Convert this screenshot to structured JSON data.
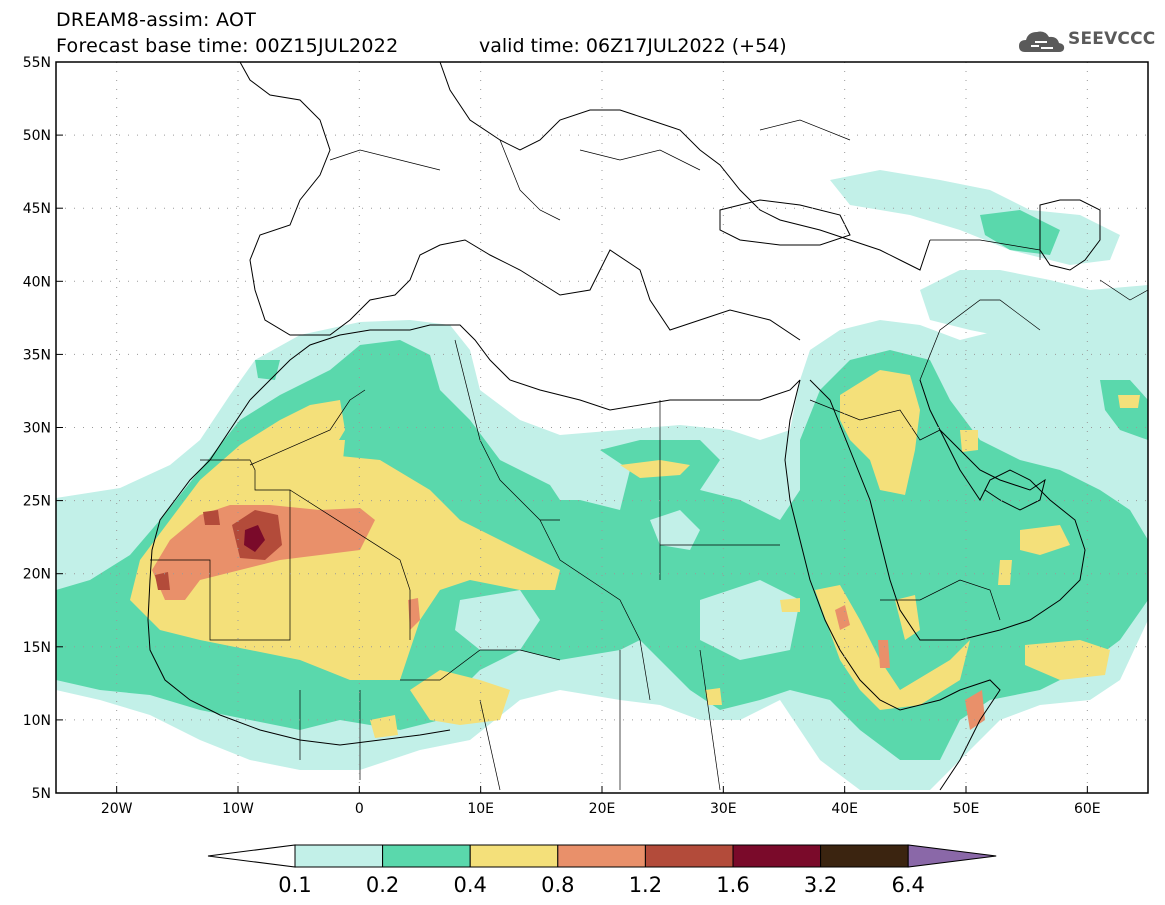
{
  "header": {
    "title": "DREAM8-assim: AOT",
    "base_time": "Forecast base time: 00Z15JUL2022",
    "valid_time": "valid time: 06Z17JUL2022 (+54)"
  },
  "logo": {
    "text": "SEEVCCC",
    "icon": "cloud-logo-icon"
  },
  "map": {
    "lon_range": [
      -25,
      65
    ],
    "lat_range": [
      5,
      55
    ],
    "lat_ticks": [
      "55N",
      "50N",
      "45N",
      "40N",
      "35N",
      "30N",
      "25N",
      "20N",
      "15N",
      "10N",
      "5N"
    ],
    "lon_ticks": [
      "20W",
      "10W",
      "0",
      "10E",
      "20E",
      "30E",
      "40E",
      "50E",
      "60E"
    ],
    "grid": "dotted"
  },
  "colorbar": {
    "levels": [
      "0.1",
      "0.2",
      "0.4",
      "0.8",
      "1.2",
      "1.6",
      "3.2",
      "6.4"
    ],
    "colors": [
      "#ffffff",
      "#c2f0e8",
      "#5ad8ac",
      "#f4e07a",
      "#e9906a",
      "#b34b3a",
      "#7a0a2a",
      "#3b2410",
      "#8a68a8"
    ]
  }
}
